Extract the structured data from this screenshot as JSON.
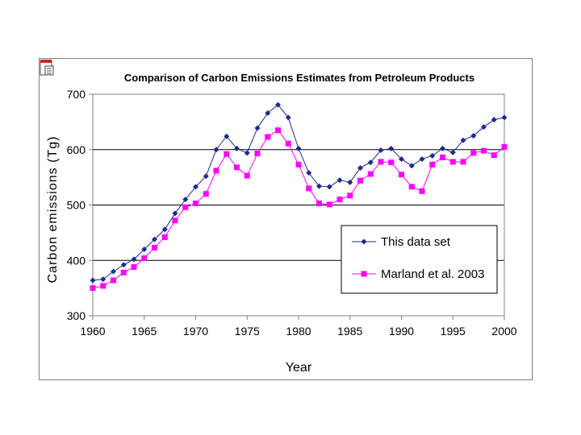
{
  "chart_data": {
    "type": "line",
    "title": "Comparison of Carbon Emissions Estimates from Petroleum Products",
    "xlabel": "Year",
    "ylabel": "Carbon emissions (Tg)",
    "xlim": [
      1960,
      2000
    ],
    "ylim": [
      300,
      700
    ],
    "x_ticks": [
      "1960",
      "1965",
      "1970",
      "1975",
      "1980",
      "1985",
      "1990",
      "1995",
      "2000"
    ],
    "y_ticks": [
      "300",
      "400",
      "500",
      "600",
      "700"
    ],
    "grid": "horizontal",
    "legend_position": "lower-right",
    "x": [
      1960,
      1961,
      1962,
      1963,
      1964,
      1965,
      1966,
      1967,
      1968,
      1969,
      1970,
      1971,
      1972,
      1973,
      1974,
      1975,
      1976,
      1977,
      1978,
      1979,
      1980,
      1981,
      1982,
      1983,
      1984,
      1985,
      1986,
      1987,
      1988,
      1989,
      1990,
      1991,
      1992,
      1993,
      1994,
      1995,
      1996,
      1997,
      1998,
      1999,
      2000
    ],
    "series": [
      {
        "name": "This data set",
        "color": "#1f2a8c",
        "marker": "diamond",
        "values": [
          364,
          366,
          380,
          392,
          402,
          420,
          438,
          456,
          485,
          510,
          533,
          552,
          600,
          624,
          602,
          594,
          639,
          666,
          681,
          658,
          602,
          558,
          534,
          533,
          545,
          541,
          567,
          577,
          599,
          602,
          583,
          571,
          583,
          589,
          602,
          595,
          617,
          625,
          641,
          654,
          658
        ]
      },
      {
        "name": "Marland et al. 2003",
        "color": "#ff00ff",
        "marker": "square",
        "values": [
          350,
          354,
          364,
          378,
          388,
          404,
          423,
          442,
          472,
          496,
          503,
          520,
          562,
          592,
          568,
          553,
          593,
          623,
          635,
          611,
          573,
          530,
          503,
          501,
          510,
          517,
          544,
          556,
          578,
          577,
          555,
          533,
          525,
          573,
          586,
          578,
          578,
          594,
          598,
          590,
          605
        ]
      }
    ]
  }
}
